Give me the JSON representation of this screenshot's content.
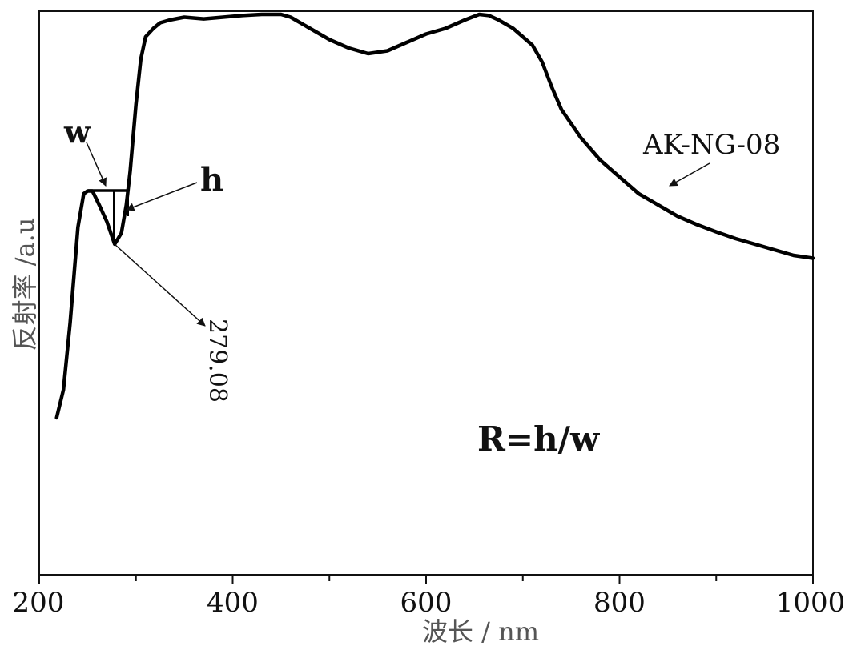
{
  "chart_data": {
    "type": "line",
    "xlabel": "波长 / nm",
    "ylabel": "反射率 /a.u",
    "xlim": [
      200,
      1000
    ],
    "ylim": [
      0,
      1
    ],
    "x_ticks": [
      200,
      400,
      600,
      800,
      1000
    ],
    "x_minor_ticks": [
      300,
      500,
      700,
      900
    ],
    "grid": false,
    "series": [
      {
        "name": "AK-NG-08",
        "x": [
          218,
          225,
          232,
          240,
          246,
          250,
          255,
          262,
          270,
          278,
          285,
          290,
          294,
          300,
          305,
          310,
          318,
          325,
          335,
          350,
          370,
          390,
          410,
          430,
          440,
          450,
          460,
          480,
          500,
          520,
          540,
          560,
          580,
          600,
          620,
          640,
          655,
          665,
          675,
          690,
          710,
          720,
          730,
          740,
          760,
          780,
          800,
          820,
          840,
          860,
          880,
          900,
          920,
          940,
          960,
          980,
          1000
        ],
        "y": [
          0.28,
          0.33,
          0.45,
          0.62,
          0.68,
          0.685,
          0.685,
          0.66,
          0.63,
          0.59,
          0.61,
          0.66,
          0.72,
          0.84,
          0.92,
          0.96,
          0.975,
          0.985,
          0.99,
          0.995,
          0.992,
          0.995,
          0.998,
          1.0,
          1.0,
          1.0,
          0.995,
          0.975,
          0.955,
          0.94,
          0.93,
          0.935,
          0.95,
          0.965,
          0.975,
          0.99,
          1.0,
          0.998,
          0.99,
          0.975,
          0.945,
          0.915,
          0.87,
          0.83,
          0.78,
          0.74,
          0.71,
          0.68,
          0.66,
          0.64,
          0.625,
          0.612,
          0.6,
          0.59,
          0.58,
          0.57,
          0.565
        ]
      }
    ],
    "annotations": {
      "w_label": "w",
      "h_label": "h",
      "peak_label": "279.08",
      "series_label": "AK-NG-08",
      "formula": "R=h/w"
    }
  }
}
